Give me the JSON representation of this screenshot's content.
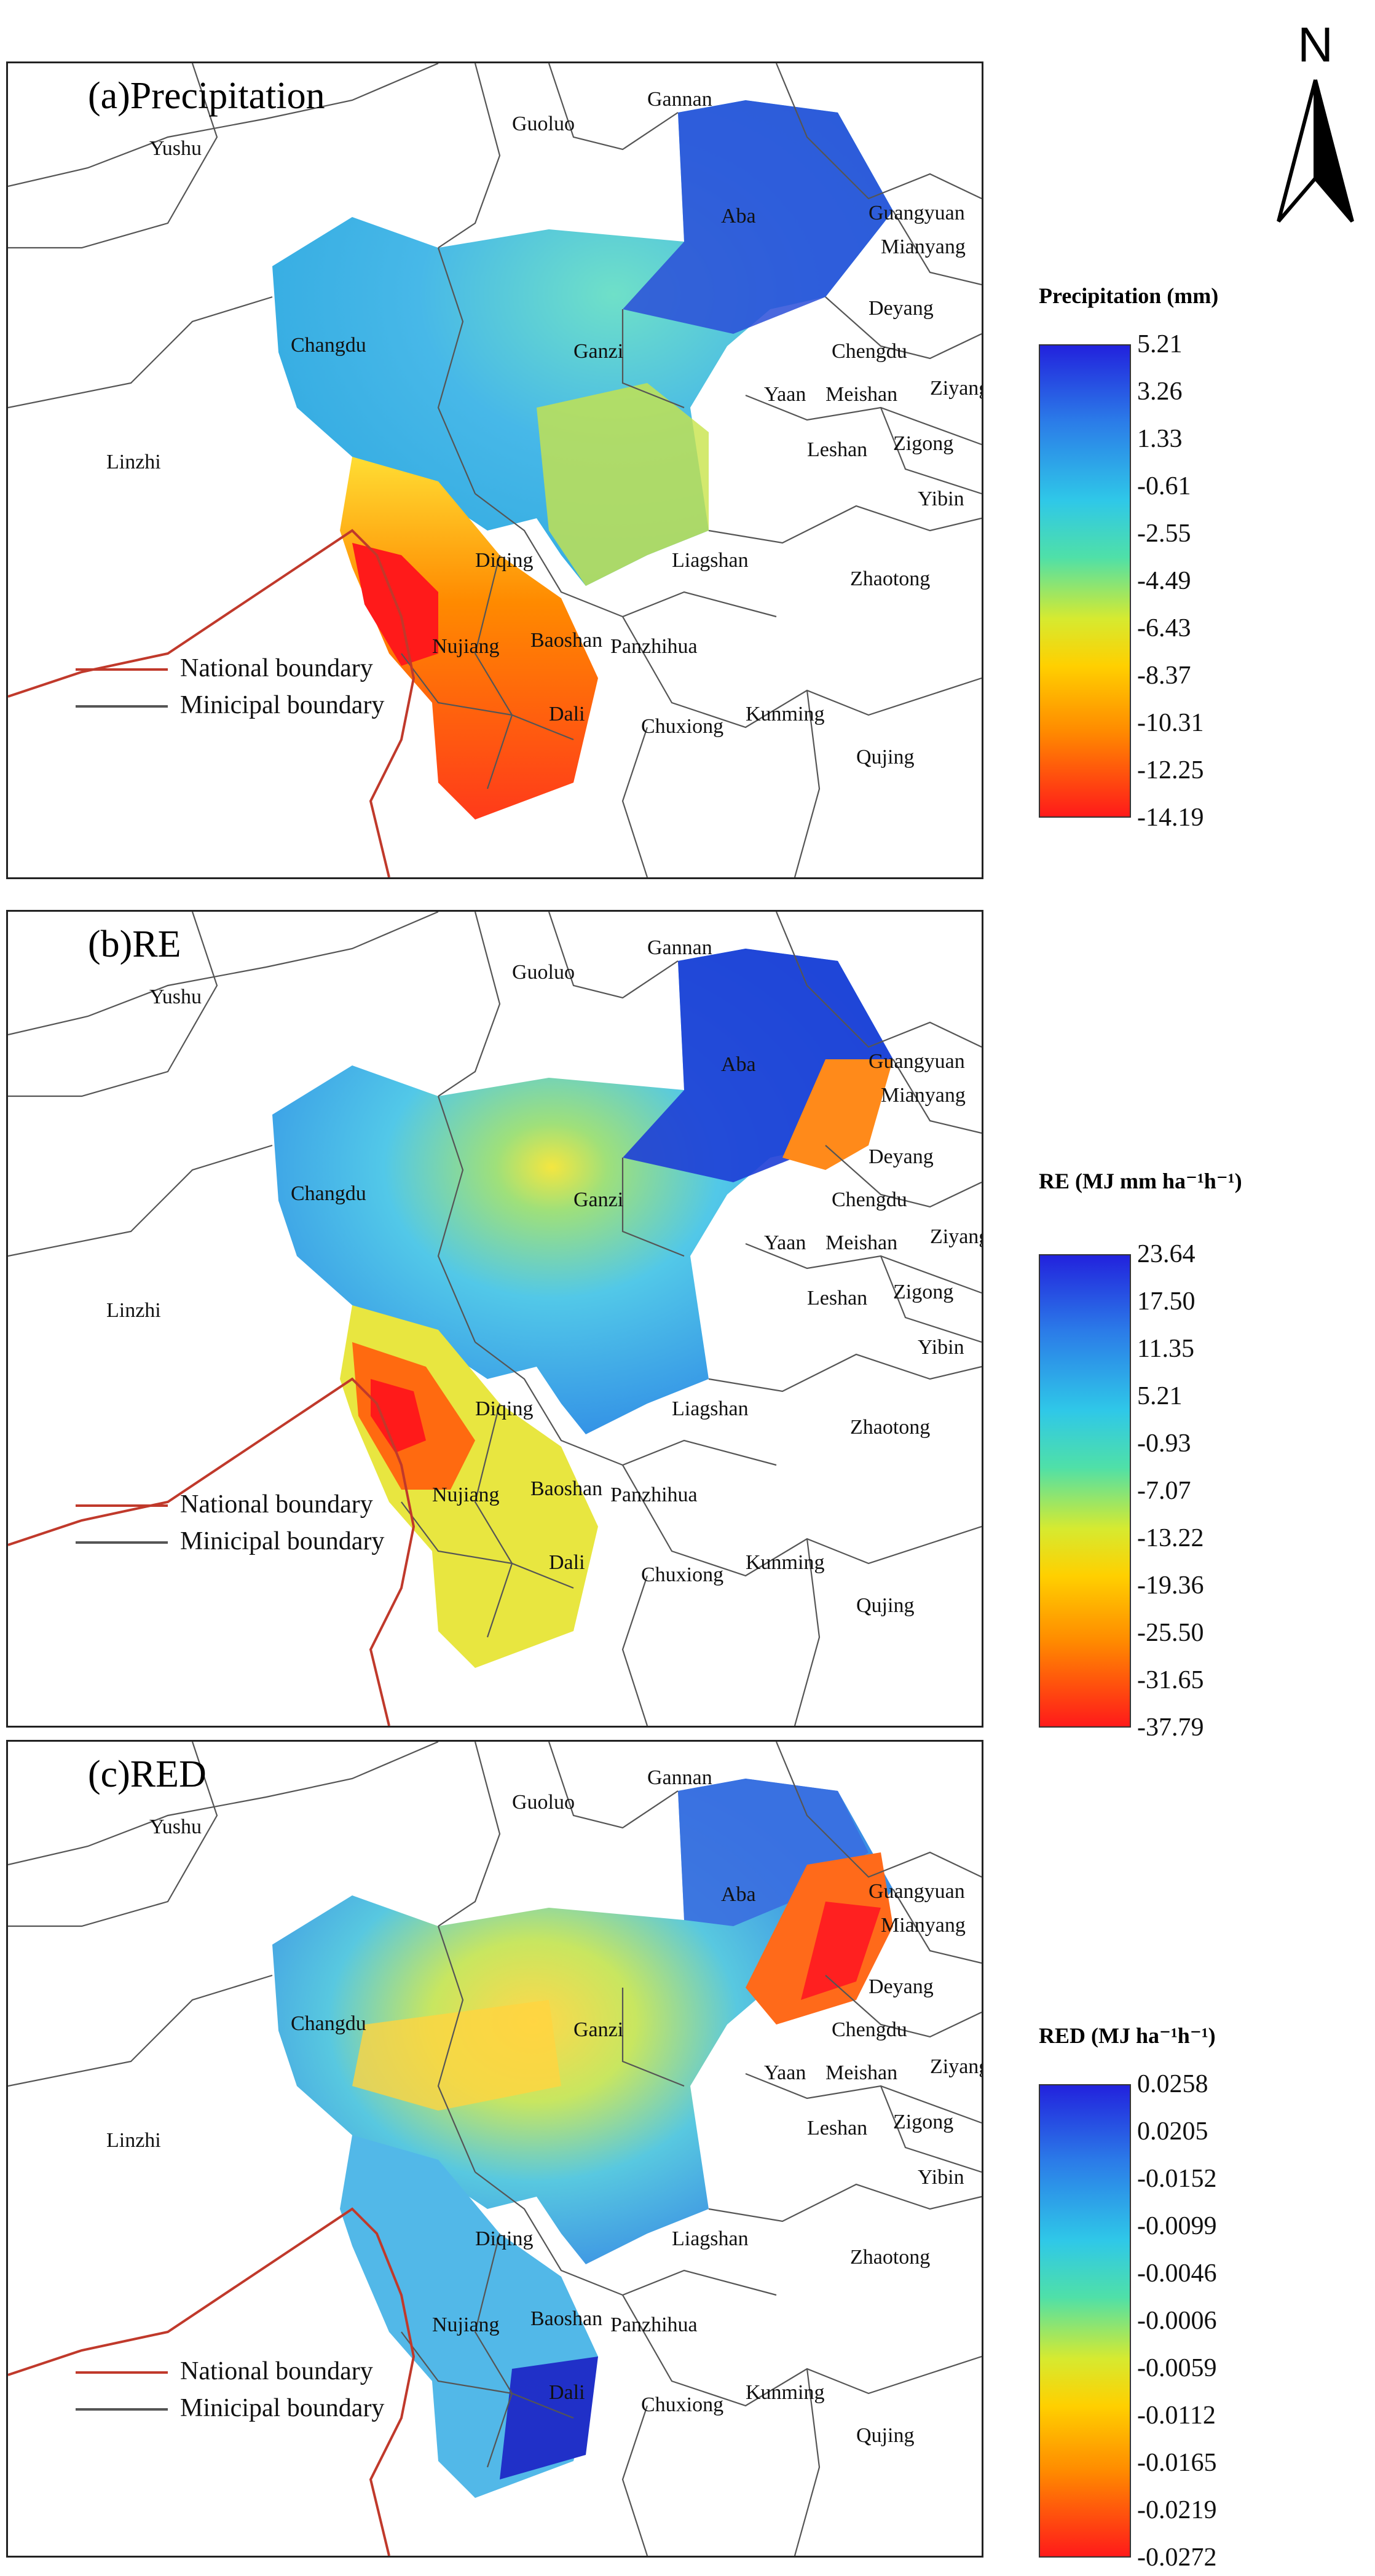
{
  "north_arrow": {
    "letter": "N"
  },
  "panels": [
    {
      "title": "(a)Precipitation",
      "colorbar_title": "Precipitation (mm)",
      "ticks": [
        "5.21",
        "3.26",
        "1.33",
        "-0.61",
        "-2.55",
        "-4.49",
        "-6.43",
        "-8.37",
        "-10.31",
        "-12.25",
        "-14.19"
      ]
    },
    {
      "title": "(b)RE",
      "colorbar_title": "RE (MJ mm ha⁻¹h⁻¹)",
      "ticks": [
        "23.64",
        "17.50",
        "11.35",
        "5.21",
        "-0.93",
        "-7.07",
        "-13.22",
        "-19.36",
        "-25.50",
        "-31.65",
        "-37.79"
      ]
    },
    {
      "title": "(c)RED",
      "colorbar_title": "RED (MJ ha⁻¹h⁻¹)",
      "ticks": [
        "0.0258",
        "0.0205",
        "-0.0152",
        "-0.0099",
        "-0.0046",
        "-0.0006",
        "-0.0059",
        "-0.0112",
        "-0.0165",
        "-0.0219",
        "-0.0272"
      ]
    }
  ],
  "place_labels": {
    "guoluo": "Guoluo",
    "gannan": "Gannan",
    "yushu": "Yushu",
    "aba": "Aba",
    "guangyuan": "Guangyuan",
    "mianyang": "Mianyang",
    "deyang": "Deyang",
    "chengdu": "Chengdu",
    "changdu": "Changdu",
    "ganzi": "Ganzi",
    "yaan": "Yaan",
    "meishan": "Meishan",
    "ziyang": "Ziyang",
    "linzhi": "Linzhi",
    "leshan": "Leshan",
    "zigong": "Zigong",
    "yibin": "Yibin",
    "diqing": "Diqing",
    "zhaotong": "Zhaotong",
    "nujiang": "Nujiang",
    "baoshan": "Baoshan",
    "panzhihua": "Panzhihua",
    "dali": "Dali",
    "chuxiong": "Chuxiong",
    "kunming": "Kunming",
    "qujing": "Qujing"
  },
  "liangshan_labels": [
    "Liagshan",
    "Liagshan",
    "Liagshan"
  ],
  "legend": {
    "national": "National boundary",
    "municipal": "Minicipal boundary"
  },
  "colors": {
    "national_boundary": "#c0392b",
    "municipal_boundary": "#555555"
  }
}
